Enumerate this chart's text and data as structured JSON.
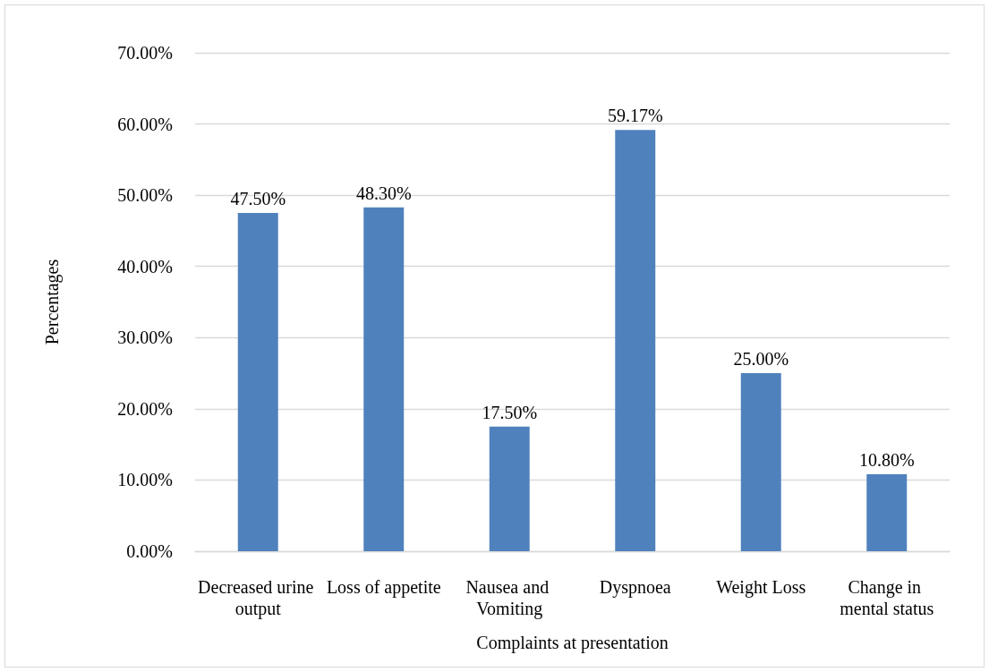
{
  "chart_data": {
    "type": "bar",
    "xlabel": "Complaints at presentation",
    "ylabel": "Percentages",
    "categories": [
      "Decreased urine output",
      "Loss of appetite",
      "Nausea and Vomiting",
      "Dyspnoea",
      "Weight Loss",
      "Change in mental status"
    ],
    "values": [
      47.5,
      48.3,
      17.5,
      59.17,
      25,
      10.8
    ],
    "value_labels": [
      "47.50%",
      "48.30%",
      "17.50%",
      "59.17%",
      "25.00%",
      "10.80%"
    ],
    "color": "#4f81bd",
    "ylim": [
      0,
      70
    ],
    "yticks": [
      {
        "value": 0,
        "label": "0.00%"
      },
      {
        "value": 10,
        "label": "10.00%"
      },
      {
        "value": 20,
        "label": "20.00%"
      },
      {
        "value": 30,
        "label": "30.00%"
      },
      {
        "value": 40,
        "label": "40.00%"
      },
      {
        "value": 50,
        "label": "50.00%"
      },
      {
        "value": 60,
        "label": "60.00%"
      },
      {
        "value": 70,
        "label": "70.00%"
      }
    ],
    "grid": "y"
  }
}
